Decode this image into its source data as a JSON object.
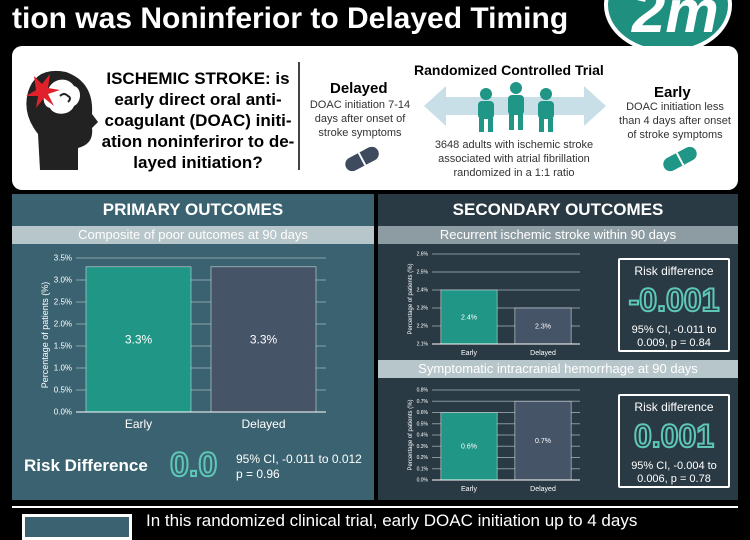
{
  "header": {
    "title": "tion was Noninferior to Delayed Timing",
    "logo_text": "2m"
  },
  "question": {
    "text": "ISCHEMIC STROKE: is early direct oral anti-coagulant (DOAC) initi-ation noninferiror to de-layed initiation?"
  },
  "trial": {
    "title": "Randomized Controlled Trial",
    "delayed_label": "Delayed",
    "delayed_desc": [
      "DOAC initiation 7-14",
      "days after onset of",
      "stroke symptoms"
    ],
    "early_label": "Early",
    "early_desc": [
      "DOAC initiation less",
      "than 4 days after onset",
      "of stroke symptoms"
    ],
    "population": [
      "3648 adults with ischemic stroke",
      "associated with atrial fibrillation",
      "randomized in a 1:1 ratio"
    ]
  },
  "primary": {
    "heading": "PRIMARY OUTCOMES",
    "band": "Composite of poor outcomes at 90 days",
    "rd_label": "Risk Difference",
    "rd_value": "0.0",
    "rd_ci_line1": "95% CI, -0.011 to 0.012",
    "rd_ci_line2": "p = 0.96"
  },
  "secondary": {
    "heading": "SECONDARY OUTCOMES",
    "band1": "Recurrent ischemic stroke within 90 days",
    "band2": "Symptomatic intracranial hemorrhage at 90 days",
    "rd1_label": "Risk difference",
    "rd1_value": "-0.001",
    "rd1_ci": [
      "95% CI, -0.011 to",
      "0.009, p = 0.84"
    ],
    "rd2_label": "Risk difference",
    "rd2_value": "0.001",
    "rd2_ci": [
      "95% CI, -0.004 to",
      "0.006, p = 0.78"
    ]
  },
  "bottom": {
    "text": "In this randomized clinical trial, early DOAC initiation up to 4 days"
  },
  "colors": {
    "early": "#1f9686",
    "delayed": "#465467",
    "teal_value": "#5ec8b8"
  },
  "chart_data": [
    {
      "type": "bar",
      "title": "Composite of poor outcomes at 90 days",
      "ylabel": "Percentage of patients (%)",
      "categories": [
        "Early",
        "Delayed"
      ],
      "values": [
        3.3,
        3.3
      ],
      "data_labels": [
        "3.3%",
        "3.3%"
      ],
      "ylim": [
        0,
        3.5
      ],
      "yticks": [
        "0.0%",
        "0.5%",
        "1.0%",
        "1.5%",
        "2.0%",
        "2.5%",
        "3.0%",
        "3.5%"
      ],
      "grid": true
    },
    {
      "type": "bar",
      "title": "Recurrent ischemic stroke within 90 days",
      "ylabel": "Percentage of patients (%)",
      "categories": [
        "Early",
        "Delayed"
      ],
      "values": [
        2.4,
        2.3
      ],
      "data_labels": [
        "2.4%",
        "2.3%"
      ],
      "ylim": [
        2.1,
        2.6
      ],
      "yticks": [
        "2.1%",
        "2.2%",
        "2.3%",
        "2.4%",
        "2.5%",
        "2.6%"
      ],
      "grid": true
    },
    {
      "type": "bar",
      "title": "Symptomatic intracranial hemorrhage at 90 days",
      "ylabel": "Percentage of patients (%)",
      "categories": [
        "Early",
        "Delayed"
      ],
      "values": [
        0.6,
        0.7
      ],
      "data_labels": [
        "0.6%",
        "0.7%"
      ],
      "ylim": [
        0,
        0.8
      ],
      "yticks": [
        "0.0%",
        "0.1%",
        "0.2%",
        "0.3%",
        "0.4%",
        "0.5%",
        "0.6%",
        "0.7%",
        "0.8%"
      ],
      "grid": true
    }
  ]
}
